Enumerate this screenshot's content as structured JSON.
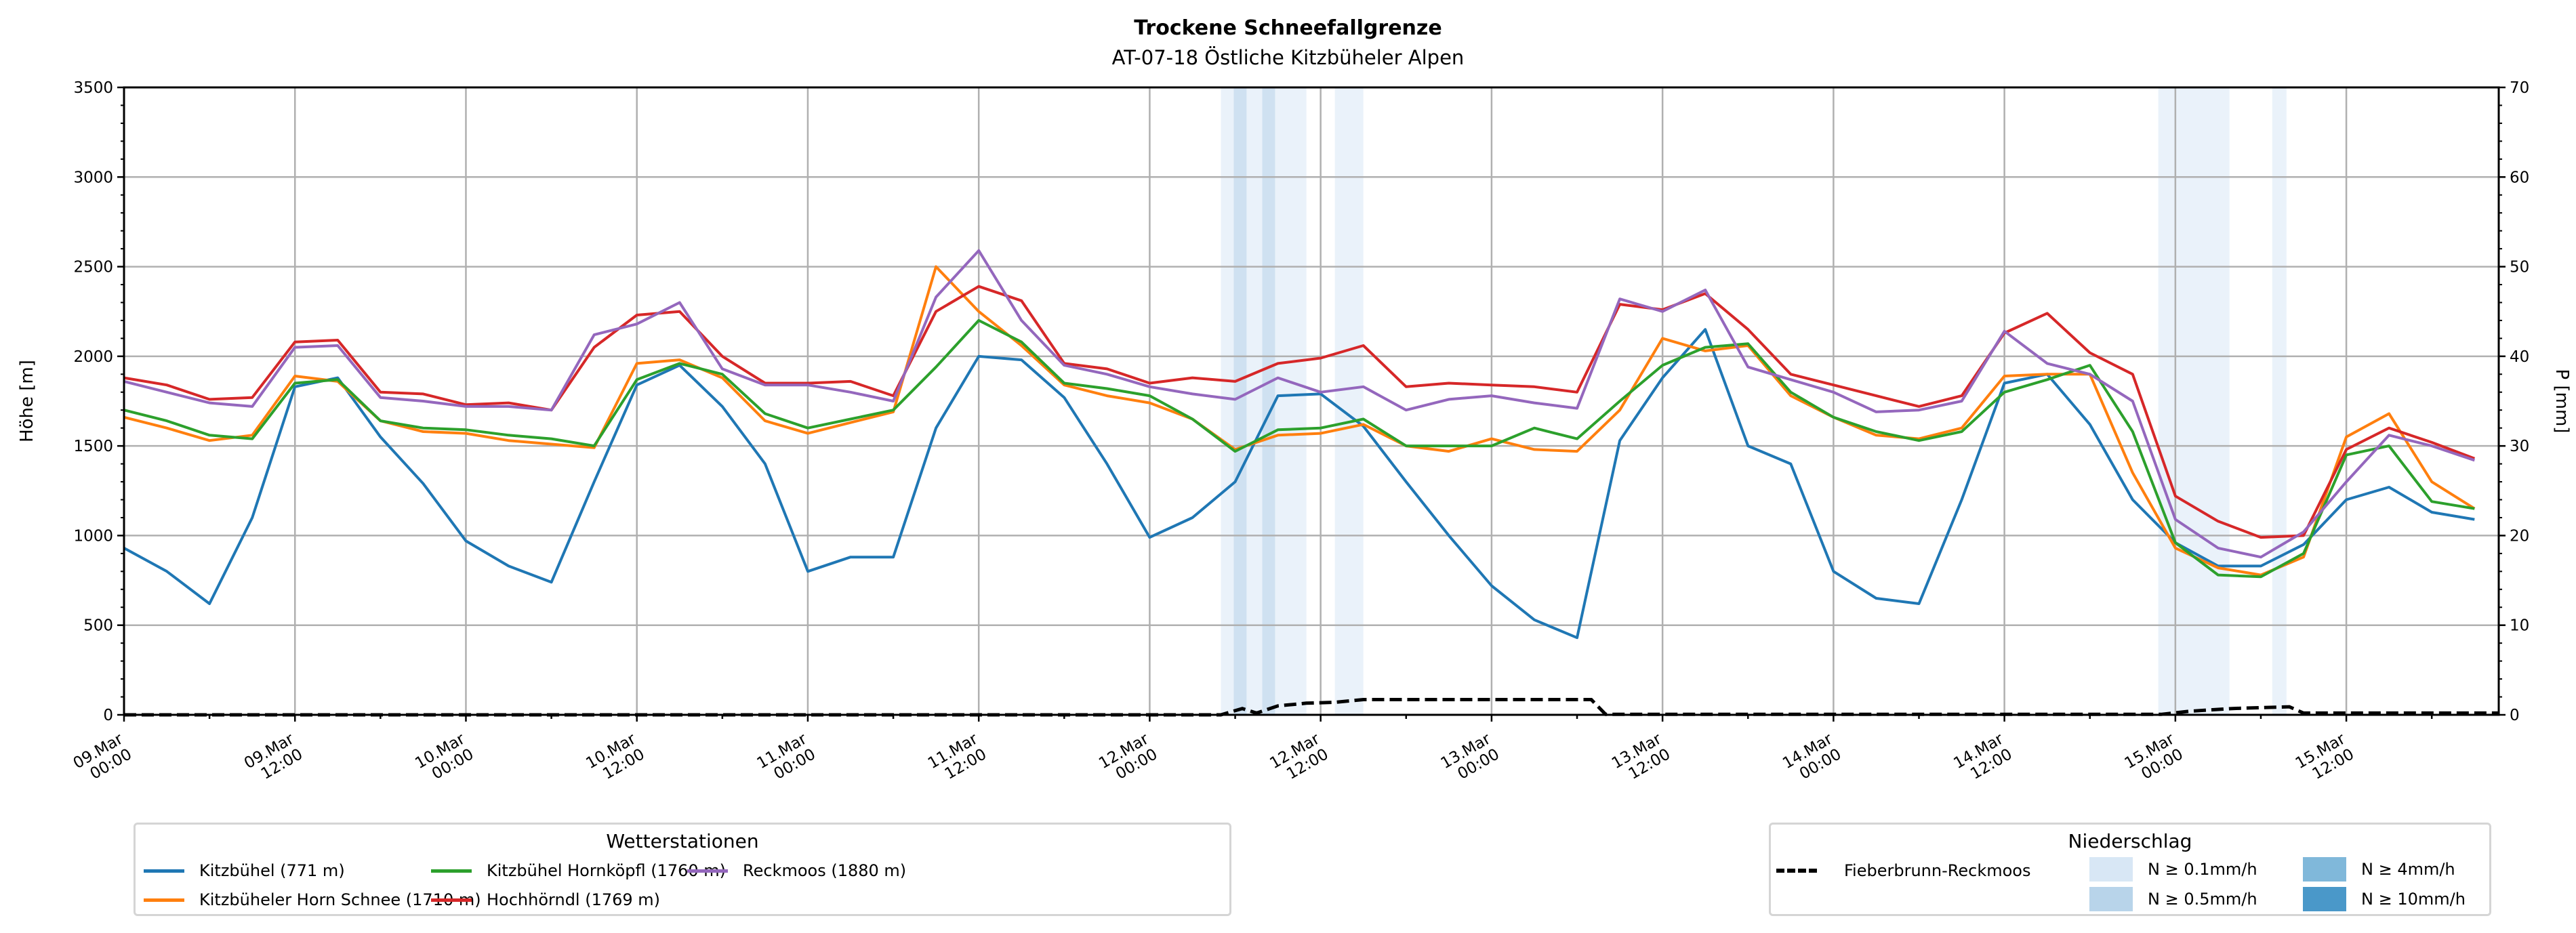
{
  "chart_data": {
    "type": "line",
    "title": "Trockene Schneefallgrenze",
    "subtitle": "AT-07-18 Östliche Kitzbüheler Alpen",
    "ylabel": "Höhe [m]",
    "ylabel_right": "P [mm]",
    "ylim": [
      0,
      3500
    ],
    "ylim_right": [
      0,
      70
    ],
    "xlim_hours": [
      0,
      166.7
    ],
    "grid": true,
    "y_ticks": [
      "0",
      "500",
      "1000",
      "1500",
      "2000",
      "2500",
      "3000",
      "3500"
    ],
    "y_ticks_right": [
      "0",
      "10",
      "20",
      "30",
      "40",
      "50",
      "60",
      "70"
    ],
    "x_tick_labels": [
      [
        "09.Mar",
        "00:00"
      ],
      [
        "09.Mar",
        "12:00"
      ],
      [
        "10.Mar",
        "00:00"
      ],
      [
        "10.Mar",
        "12:00"
      ],
      [
        "11.Mar",
        "00:00"
      ],
      [
        "11.Mar",
        "12:00"
      ],
      [
        "12.Mar",
        "00:00"
      ],
      [
        "12.Mar",
        "12:00"
      ],
      [
        "13.Mar",
        "00:00"
      ],
      [
        "13.Mar",
        "12:00"
      ],
      [
        "14.Mar",
        "00:00"
      ],
      [
        "14.Mar",
        "12:00"
      ],
      [
        "15.Mar",
        "00:00"
      ],
      [
        "15.Mar",
        "12:00"
      ]
    ],
    "x_hours": [
      0,
      3,
      6,
      9,
      12,
      15,
      18,
      21,
      24,
      27,
      30,
      33,
      36,
      39,
      42,
      45,
      48,
      51,
      54,
      57,
      60,
      63,
      66,
      69,
      72,
      75,
      78,
      81,
      84,
      87,
      90,
      93,
      96,
      99,
      102,
      105,
      108,
      111,
      114,
      117,
      120,
      123,
      126,
      129,
      132,
      135,
      138,
      141,
      144,
      147,
      150,
      153,
      156,
      159,
      162,
      165
    ],
    "legend_title": "Wetterstationen",
    "series": [
      {
        "name": "Kitzbühel (771 m)",
        "color": "#1f77b4",
        "values": [
          930,
          800,
          620,
          1100,
          1830,
          1880,
          1550,
          1290,
          970,
          830,
          740,
          1300,
          1840,
          1950,
          1720,
          1400,
          800,
          880,
          880,
          1600,
          2000,
          1980,
          1770,
          1400,
          990,
          1100,
          1300,
          1780,
          1790,
          1610,
          1300,
          1000,
          720,
          530,
          430,
          1530,
          1880,
          2150,
          1500,
          1400,
          800,
          650,
          620,
          1200,
          1850,
          1900,
          1620,
          1200,
          960,
          830,
          830,
          950,
          1200,
          1270,
          1130,
          1090
        ]
      },
      {
        "name": "Kitzbüheler Horn Schnee (1710 m)",
        "color": "#ff7f0e",
        "values": [
          1660,
          1600,
          1530,
          1560,
          1890,
          1860,
          1640,
          1580,
          1570,
          1530,
          1510,
          1490,
          1960,
          1980,
          1880,
          1640,
          1570,
          1630,
          1690,
          2500,
          2250,
          2060,
          1840,
          1780,
          1740,
          1650,
          1480,
          1560,
          1570,
          1620,
          1500,
          1470,
          1540,
          1480,
          1470,
          1700,
          2100,
          2030,
          2060,
          1780,
          1660,
          1560,
          1540,
          1600,
          1890,
          1900,
          1900,
          1350,
          930,
          820,
          780,
          880,
          1550,
          1680,
          1300,
          1150
        ]
      },
      {
        "name": "Kitzbühel Hornköpfl (1760 m)",
        "color": "#2ca02c",
        "values": [
          1700,
          1640,
          1560,
          1540,
          1850,
          1870,
          1640,
          1600,
          1590,
          1560,
          1540,
          1500,
          1870,
          1960,
          1900,
          1680,
          1600,
          1650,
          1700,
          1940,
          2200,
          2080,
          1850,
          1820,
          1780,
          1650,
          1470,
          1590,
          1600,
          1650,
          1500,
          1500,
          1500,
          1600,
          1540,
          1750,
          1950,
          2050,
          2070,
          1800,
          1660,
          1580,
          1530,
          1580,
          1800,
          1870,
          1950,
          1580,
          960,
          780,
          770,
          900,
          1450,
          1500,
          1190,
          1150
        ]
      },
      {
        "name": "Hochhörndl (1769 m)",
        "color": "#d62728",
        "values": [
          1880,
          1840,
          1760,
          1770,
          2080,
          2090,
          1800,
          1790,
          1730,
          1740,
          1700,
          2050,
          2230,
          2250,
          2000,
          1850,
          1850,
          1860,
          1780,
          2250,
          2390,
          2310,
          1960,
          1930,
          1850,
          1880,
          1860,
          1960,
          1990,
          2060,
          1830,
          1850,
          1840,
          1830,
          1800,
          2290,
          2260,
          2350,
          2150,
          1900,
          1840,
          1780,
          1720,
          1780,
          2130,
          2240,
          2020,
          1900,
          1220,
          1080,
          990,
          1000,
          1480,
          1600,
          1520,
          1430
        ]
      },
      {
        "name": "Reckmoos (1880 m)",
        "color": "#9467bd",
        "values": [
          1860,
          1800,
          1740,
          1720,
          2050,
          2060,
          1770,
          1750,
          1720,
          1720,
          1700,
          2120,
          2180,
          2300,
          1930,
          1840,
          1840,
          1800,
          1750,
          2330,
          2590,
          2200,
          1950,
          1900,
          1830,
          1790,
          1760,
          1880,
          1800,
          1830,
          1700,
          1760,
          1780,
          1740,
          1710,
          2320,
          2250,
          2370,
          1940,
          1870,
          1800,
          1690,
          1700,
          1750,
          2140,
          1960,
          1900,
          1750,
          1090,
          930,
          880,
          1020,
          1300,
          1560,
          1500,
          1420
        ]
      }
    ],
    "precip_legend_title": "Niederschlag",
    "precip_series": {
      "name": "Fieberbrunn-Reckmoos",
      "color": "#000000",
      "points": [
        [
          0,
          0
        ],
        [
          77,
          0
        ],
        [
          78.5,
          0.7
        ],
        [
          79.5,
          0.2
        ],
        [
          81,
          1.0
        ],
        [
          83,
          1.3
        ],
        [
          85,
          1.4
        ],
        [
          87,
          1.7
        ],
        [
          103,
          1.7
        ],
        [
          104,
          0.05
        ],
        [
          143,
          0.05
        ],
        [
          145,
          0.4
        ],
        [
          148,
          0.7
        ],
        [
          152,
          0.9
        ],
        [
          153,
          0.2
        ],
        [
          166.7,
          0.2
        ]
      ]
    },
    "precip_classes": [
      {
        "label": "N ≥ 0.1mm/h",
        "color": "#d8e7f5"
      },
      {
        "label": "N ≥ 0.5mm/h",
        "color": "#b8d4ea"
      },
      {
        "label": "N ≥ 4mm/h",
        "color": "#80b8da"
      },
      {
        "label": "N ≥ 10mm/h",
        "color": "#4a98c9"
      }
    ],
    "precip_bands": [
      {
        "start": 77.0,
        "end": 83.0,
        "class": 0
      },
      {
        "start": 77.9,
        "end": 78.8,
        "class": 1
      },
      {
        "start": 79.9,
        "end": 80.8,
        "class": 1
      },
      {
        "start": 85.0,
        "end": 87.0,
        "class": 0
      },
      {
        "start": 142.8,
        "end": 147.8,
        "class": 0
      },
      {
        "start": 150.8,
        "end": 151.8,
        "class": 0
      }
    ]
  }
}
